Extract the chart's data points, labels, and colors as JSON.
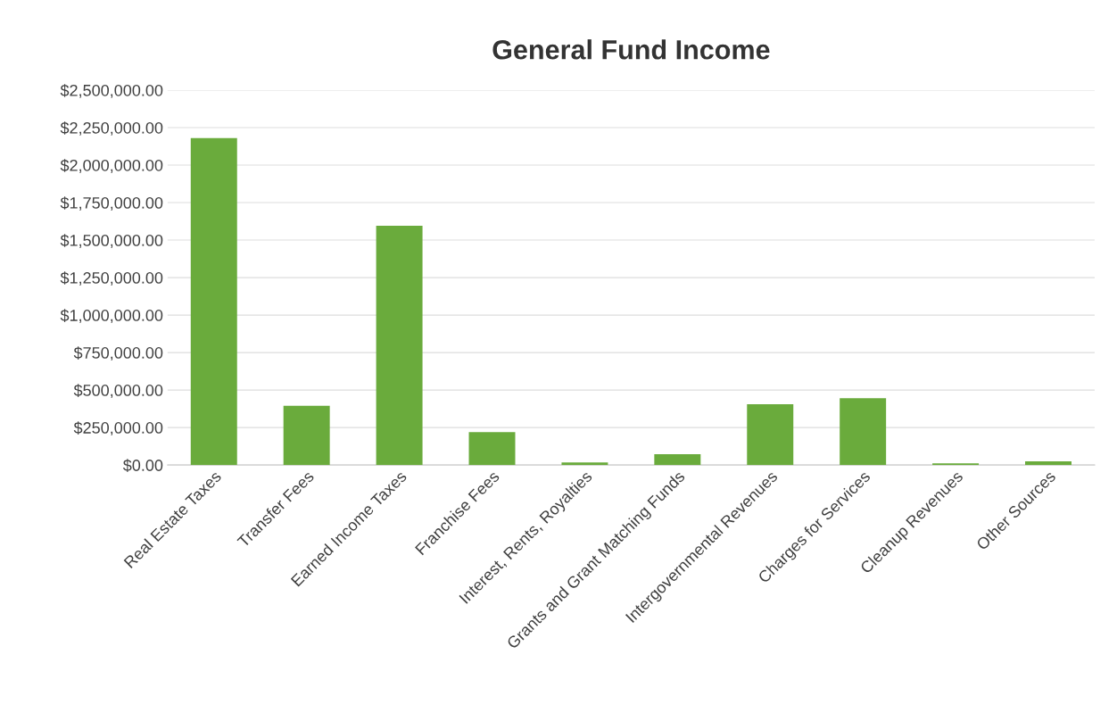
{
  "chart_data": {
    "type": "bar",
    "title": "General Fund Income",
    "categories": [
      "Real Estate Taxes",
      "Transfer Fees",
      "Earned Income Taxes",
      "Franchise Fees",
      "Interest, Rents, Royalties",
      "Grants and Grant Matching Funds",
      "Intergovernmental Revenues",
      "Charges for Services",
      "Cleanup Revenues",
      "Other Sources"
    ],
    "values": [
      2180000,
      395000,
      1595000,
      220000,
      18000,
      73000,
      405000,
      445000,
      12000,
      25000
    ],
    "color": "#6aab3c",
    "ylim": [
      0,
      2500000
    ],
    "yticks": [
      {
        "value": 0,
        "label": "$0.00"
      },
      {
        "value": 250000,
        "label": "$250,000.00"
      },
      {
        "value": 500000,
        "label": "$500,000.00"
      },
      {
        "value": 750000,
        "label": "$750,000.00"
      },
      {
        "value": 1000000,
        "label": "$1,000,000.00"
      },
      {
        "value": 1250000,
        "label": "$1,250,000.00"
      },
      {
        "value": 1500000,
        "label": "$1,500,000.00"
      },
      {
        "value": 1750000,
        "label": "$1,750,000.00"
      },
      {
        "value": 2000000,
        "label": "$2,000,000.00"
      },
      {
        "value": 2250000,
        "label": "$2,250,000.00"
      },
      {
        "value": 2500000,
        "label": "$2,500,000.00"
      }
    ],
    "grid": "y"
  }
}
